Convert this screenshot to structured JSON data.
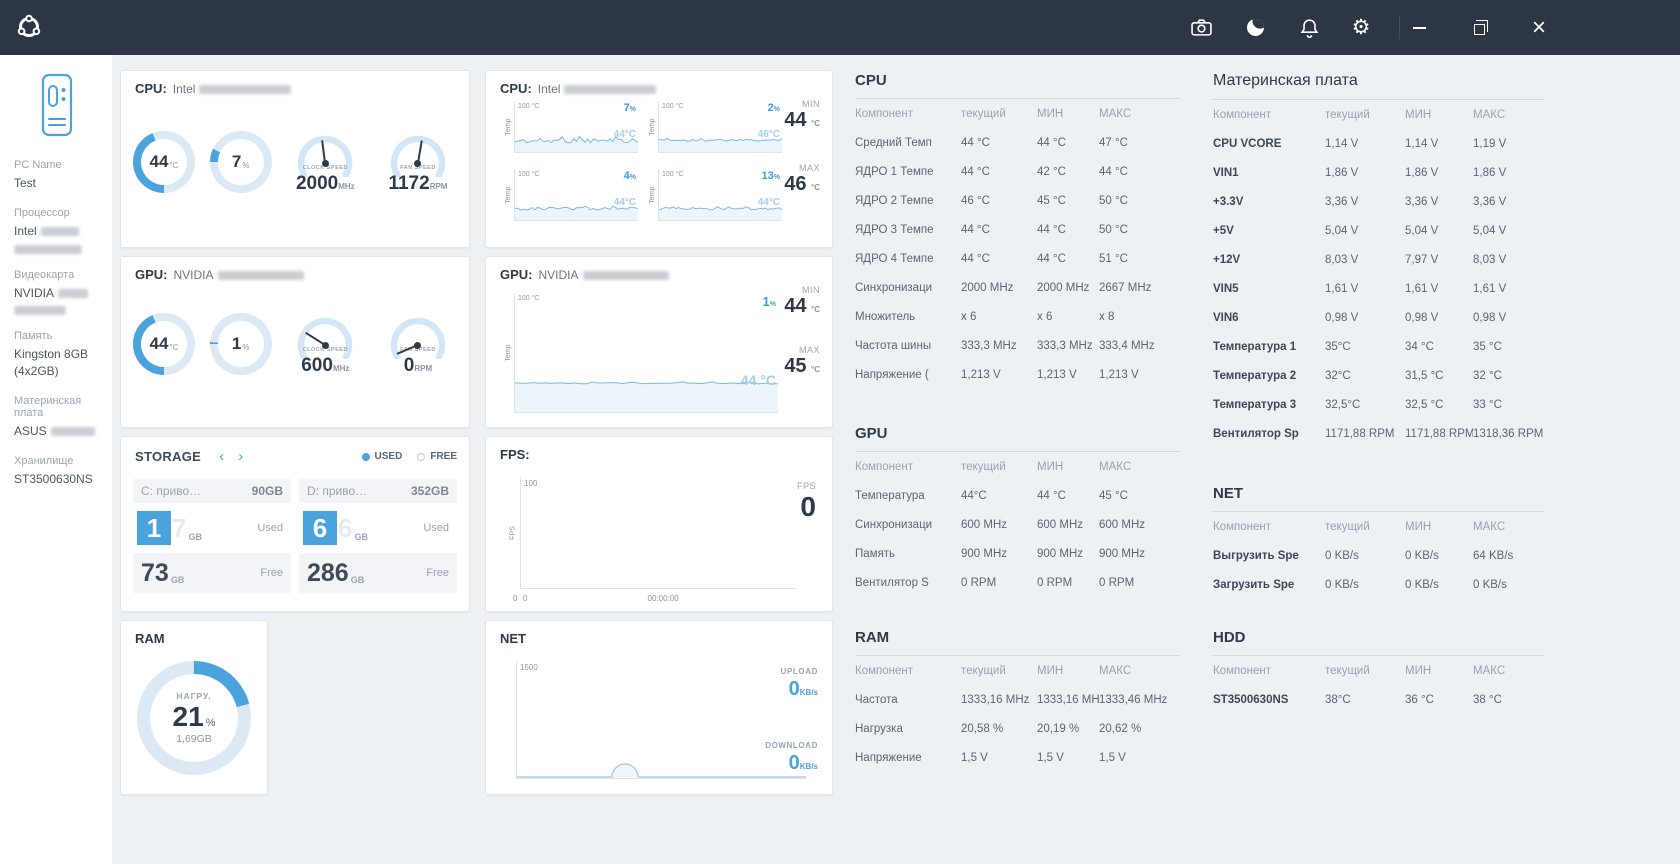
{
  "colors": {
    "accent": "#4aa3dc",
    "track": "#dbe9f5",
    "dark": "#2e3a48",
    "topbar": "#2c3644"
  },
  "topbar": {
    "icon_names": [
      "camera",
      "moon",
      "bell",
      "gear",
      "minimize",
      "maximize",
      "close"
    ],
    "gear_glyph": "⚙",
    "close_glyph": "×"
  },
  "sidebar": {
    "pc_name_label": "PC Name",
    "pc_name": "Test",
    "cpu_label": "Процессор",
    "cpu_brand": "Intel",
    "gpu_label": "Видеокарта",
    "gpu_brand": "NVIDIA",
    "ram_label": "Память",
    "ram_value": "Kingston 8GB (4x2GB)",
    "mb_label": "Материнская плата",
    "mb_brand": "ASUS",
    "storage_label": "Хранилище",
    "storage_value": "ST3500630NS"
  },
  "cards": {
    "cpu_gauges": {
      "title": "CPU:",
      "brand": "Intel",
      "temp": {
        "value": "44",
        "unit": "°C",
        "percent": 44
      },
      "load": {
        "value": "7",
        "unit": "%",
        "percent": 7
      },
      "clock": {
        "label": "CLOCK SPEED",
        "value": "2000",
        "unit": "MHz",
        "fraction": 0.47
      },
      "fan": {
        "label": "FAN SPEED",
        "value": "1172",
        "unit": "RPM",
        "fraction": 0.54
      }
    },
    "gpu_gauges": {
      "title": "GPU:",
      "brand": "NVIDIA",
      "temp": {
        "value": "44",
        "unit": "°C",
        "percent": 44
      },
      "load": {
        "value": "1",
        "unit": "%",
        "percent": 1
      },
      "clock": {
        "label": "CLOCK SPEED",
        "value": "600",
        "unit": "MHz",
        "fraction": 0.26
      },
      "fan": {
        "label": "FAN SPEED",
        "value": "0",
        "unit": "RPM",
        "fraction": 0.03
      }
    },
    "storage": {
      "title": "STORAGE",
      "legend_used": "USED",
      "legend_free": "FREE",
      "drives": [
        {
          "name": "C: приво…",
          "total": "90GB",
          "used_box": "1",
          "used_ghost": "7",
          "unit": "GB",
          "used_label": "Used",
          "free": "73",
          "free_label": "Free"
        },
        {
          "name": "D: приво…",
          "total": "352GB",
          "used_box": "6",
          "used_ghost": "6",
          "unit": "GB",
          "used_label": "Used",
          "free": "286",
          "free_label": "Free"
        }
      ]
    },
    "ram": {
      "title": "RAM",
      "load_label": "НАГРУ.",
      "value": "21",
      "unit": "%",
      "amount": "1,69GB",
      "percent": 21
    }
  },
  "chart_data": {
    "cpu": {
      "type": "line",
      "title": "CPU:",
      "brand": "Intel",
      "axis_top": "100 °C",
      "ylabel": "Temp",
      "unit": "°C",
      "pct_sign": "%",
      "series": [
        {
          "load": "7",
          "temp": 44,
          "temp_label": "44°C"
        },
        {
          "load": "2",
          "temp": 46,
          "temp_label": "46°C"
        },
        {
          "load": "4",
          "temp": 44,
          "temp_label": "44°C"
        },
        {
          "load": "13",
          "temp": 44,
          "temp_label": "44°C"
        }
      ],
      "min_label": "MIN",
      "min_value": "44",
      "max_label": "MAX",
      "max_value": "46"
    },
    "gpu": {
      "type": "line",
      "title": "GPU:",
      "brand": "NVIDIA",
      "axis_top": "100 °C",
      "ylabel": "Temp",
      "unit": "°C",
      "pct_sign": "%",
      "load": "1",
      "temp": 44,
      "temp_label": "44 °C",
      "min_label": "MIN",
      "min_value": "44",
      "max_label": "MAX",
      "max_value": "45"
    },
    "fps": {
      "type": "line",
      "title": "FPS:",
      "y_top": "100",
      "y_bottom": "0",
      "ylabel": "FPS",
      "x_start": "0",
      "x_time": "00:00:00",
      "right_label": "FPS",
      "right_value": "0"
    },
    "net": {
      "type": "line",
      "title": "NET",
      "y_top": "1500",
      "upload_label": "UPLOAD",
      "upload_value": "0",
      "upload_unit": "KB/s",
      "download_label": "DOWNLOAD",
      "download_value": "0",
      "download_unit": "KB/s"
    }
  },
  "tables": {
    "cpu": {
      "title": "CPU",
      "bold_first": false,
      "headers": [
        "Компонент",
        "текущий",
        "МИН",
        "МАКС"
      ],
      "rows": [
        [
          "Средний Темп",
          "44 °C",
          "44 °C",
          "47 °C"
        ],
        [
          "ЯДРО 1 Темпе",
          "44 °C",
          "42 °C",
          "44 °C"
        ],
        [
          "ЯДРО 2 Темпе",
          "46 °C",
          "45 °C",
          "50 °C"
        ],
        [
          "ЯДРО 3 Темпе",
          "44 °C",
          "44 °C",
          "50 °C"
        ],
        [
          "ЯДРО 4 Темпе",
          "44 °C",
          "44 °C",
          "51 °C"
        ],
        [
          "Синхронизаци",
          "2000 MHz",
          "2000 MHz",
          "2667 MHz"
        ],
        [
          "Множитель",
          "x 6",
          "x 6",
          "x 8"
        ],
        [
          "Частота шины",
          "333,3 MHz",
          "333,3 MHz",
          "333,4 MHz"
        ],
        [
          "Напряжение (",
          "1,213 V",
          "1,213 V",
          "1,213 V"
        ]
      ]
    },
    "gpu": {
      "title": "GPU",
      "bold_first": false,
      "headers": [
        "Компонент",
        "текущий",
        "МИН",
        "МАКС"
      ],
      "rows": [
        [
          "Температура",
          "44°C",
          "44 °C",
          "45 °C"
        ],
        [
          "Синхронизаци",
          "600 MHz",
          "600 MHz",
          "600 MHz"
        ],
        [
          "Память",
          "900 MHz",
          "900 MHz",
          "900 MHz"
        ],
        [
          "Вентилятор S",
          "0 RPM",
          "0 RPM",
          "0 RPM"
        ]
      ]
    },
    "ram": {
      "title": "RAM",
      "bold_first": false,
      "headers": [
        "Компонент",
        "текущий",
        "МИН",
        "МАКС"
      ],
      "rows": [
        [
          "Частота",
          "1333,16 MHz",
          "1333,16 MHz",
          "1333,46 MHz"
        ],
        [
          "Нагрузка",
          "20,58 %",
          "20,19 %",
          "20,62 %"
        ],
        [
          "Напряжение",
          "1,5 V",
          "1,5 V",
          "1,5 V"
        ]
      ]
    },
    "mb": {
      "title": "Материнская плата",
      "title_bold": false,
      "bold_first": true,
      "headers": [
        "Компонент",
        "текущий",
        "МИН",
        "МАКС"
      ],
      "rows": [
        [
          "CPU VCORE",
          "1,14 V",
          "1,14 V",
          "1,19 V"
        ],
        [
          "VIN1",
          "1,86 V",
          "1,86 V",
          "1,86 V"
        ],
        [
          "+3.3V",
          "3,36 V",
          "3,36 V",
          "3,36 V"
        ],
        [
          "+5V",
          "5,04 V",
          "5,04 V",
          "5,04 V"
        ],
        [
          "+12V",
          "8,03 V",
          "7,97 V",
          "8,03 V"
        ],
        [
          "VIN5",
          "1,61 V",
          "1,61 V",
          "1,61 V"
        ],
        [
          "VIN6",
          "0,98 V",
          "0,98 V",
          "0,98 V"
        ],
        [
          "Температура 1",
          "35°C",
          "34 °C",
          "35 °C"
        ],
        [
          "Температура 2",
          "32°C",
          "31,5 °C",
          "32 °C"
        ],
        [
          "Температура 3",
          "32,5°C",
          "32,5 °C",
          "33 °C"
        ],
        [
          "Вентилятор Sp",
          "1171,88 RPM",
          "1171,88 RPM",
          "1318,36 RPM"
        ]
      ]
    },
    "net": {
      "title": "NET",
      "bold_first": true,
      "headers": [
        "Компонент",
        "текущий",
        "МИН",
        "МАКС"
      ],
      "rows": [
        [
          "Выгрузить Spe",
          "0 KB/s",
          "0 KB/s",
          "64 KB/s"
        ],
        [
          "Загрузить Spe",
          "0 KB/s",
          "0 KB/s",
          "0 KB/s"
        ]
      ]
    },
    "hdd": {
      "title": "HDD",
      "bold_first": true,
      "headers": [
        "Компонент",
        "текущий",
        "МИН",
        "МАКС"
      ],
      "rows": [
        [
          "ST3500630NS",
          "38°C",
          "36 °C",
          "38 °C"
        ]
      ]
    }
  }
}
